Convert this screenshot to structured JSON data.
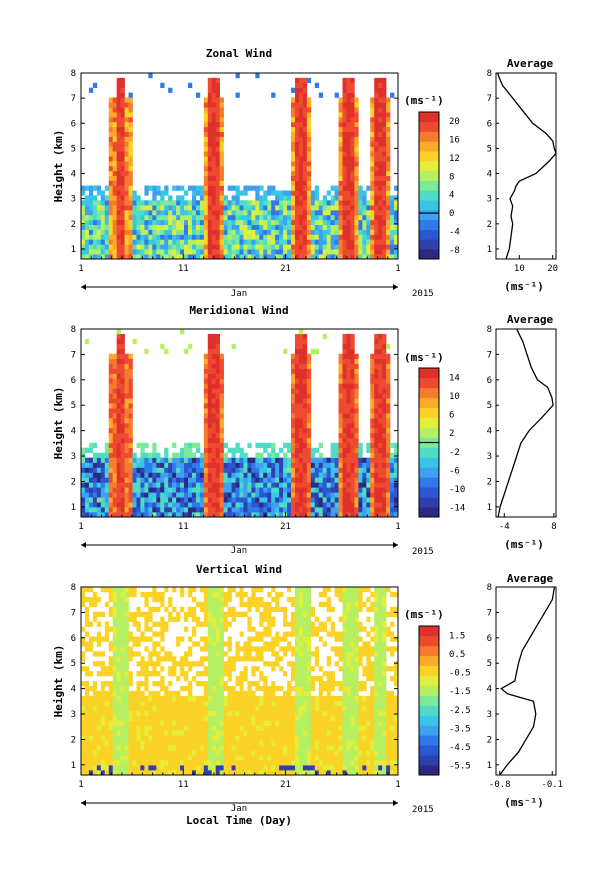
{
  "figure": {
    "year_label": "2015",
    "month_label": "Jan",
    "time_axis_label": "Local Time (Day)",
    "height_axis_label": "Height (km)",
    "unit_label": "(ms⁻¹)",
    "average_title": "Average"
  },
  "chart_data": [
    {
      "type": "heatmap",
      "title": "Zonal Wind",
      "xlabel": "",
      "ylabel": "Height (km)",
      "x_ticks": [
        "1",
        "11",
        "21",
        "1"
      ],
      "x_range_days": [
        1,
        32
      ],
      "y_ticks": [
        1,
        2,
        3,
        4,
        5,
        6,
        7,
        8
      ],
      "ylim": [
        0.6,
        8
      ],
      "colorbar": {
        "unit": "(ms⁻¹)",
        "ticks": [
          "-8",
          "-4",
          "0",
          "4",
          "8",
          "12",
          "16",
          "20"
        ],
        "range": [
          -10,
          22
        ],
        "zero_line": 0
      },
      "profile": {
        "title": "Average",
        "xlabel": "(ms⁻¹)",
        "x_ticks": [
          "10",
          "20"
        ],
        "xlim": [
          3,
          21
        ],
        "height": [
          0.6,
          1.0,
          1.5,
          2.0,
          2.3,
          2.7,
          3.0,
          3.3,
          3.5,
          3.7,
          4.0,
          4.5,
          4.8,
          5.0,
          5.3,
          5.6,
          6.0,
          6.5,
          7.0,
          7.5,
          7.8,
          8.0
        ],
        "speed": [
          6,
          7,
          7.5,
          8,
          7.5,
          8,
          7.2,
          8.5,
          9,
          10,
          15,
          19,
          21,
          20.5,
          20,
          18,
          14,
          11,
          8,
          5,
          4,
          3.5
        ]
      }
    },
    {
      "type": "heatmap",
      "title": "Meridional Wind",
      "xlabel": "",
      "ylabel": "Height (km)",
      "x_ticks": [
        "1",
        "11",
        "21",
        "1"
      ],
      "x_range_days": [
        1,
        32
      ],
      "y_ticks": [
        1,
        2,
        3,
        4,
        5,
        6,
        7,
        8
      ],
      "ylim": [
        0.6,
        8
      ],
      "colorbar": {
        "unit": "(ms⁻¹)",
        "ticks": [
          "-14",
          "-10",
          "-6",
          "-2",
          "2",
          "6",
          "10",
          "14"
        ],
        "range": [
          -16,
          16
        ],
        "zero_line": 0
      },
      "profile": {
        "title": "Average",
        "xlabel": "(ms⁻¹)",
        "x_ticks": [
          "-4",
          "8"
        ],
        "xlim": [
          -6,
          8.5
        ],
        "height": [
          0.6,
          1.0,
          1.5,
          2.0,
          2.5,
          3.0,
          3.5,
          4.0,
          4.5,
          5.0,
          5.3,
          5.7,
          6.0,
          6.5,
          7.0,
          7.5,
          8.0
        ],
        "speed": [
          -5.5,
          -5,
          -4,
          -3,
          -2,
          -1,
          0,
          2,
          5,
          7.8,
          7.5,
          6.5,
          4,
          2.5,
          1.5,
          0.5,
          -1
        ]
      }
    },
    {
      "type": "heatmap",
      "title": "Vertical Wind",
      "xlabel": "Local Time (Day)",
      "ylabel": "Height (km)",
      "x_ticks": [
        "1",
        "11",
        "21",
        "1"
      ],
      "x_range_days": [
        1,
        32
      ],
      "y_ticks": [
        1,
        2,
        3,
        4,
        5,
        6,
        7,
        8
      ],
      "ylim": [
        0.6,
        8
      ],
      "colorbar": {
        "unit": "(ms⁻¹)",
        "ticks": [
          "-5.5",
          "-4.5",
          "-3.5",
          "-2.5",
          "-1.5",
          "-0.5",
          "0.5",
          "1.5"
        ],
        "range": [
          -6,
          2
        ],
        "zero_line": null
      },
      "profile": {
        "title": "Average",
        "xlabel": "(ms⁻¹)",
        "x_ticks": [
          "-0.8",
          "-0.1"
        ],
        "xlim": [
          -0.85,
          -0.05
        ],
        "height": [
          0.6,
          1.0,
          1.5,
          2.0,
          2.5,
          3.0,
          3.5,
          3.8,
          4.0,
          4.3,
          5.0,
          5.5,
          6.0,
          6.5,
          7.0,
          7.5,
          8.0
        ],
        "speed": [
          -0.8,
          -0.7,
          -0.55,
          -0.45,
          -0.35,
          -0.32,
          -0.35,
          -0.7,
          -0.78,
          -0.6,
          -0.55,
          -0.5,
          -0.4,
          -0.3,
          -0.2,
          -0.1,
          -0.07
        ]
      }
    }
  ]
}
